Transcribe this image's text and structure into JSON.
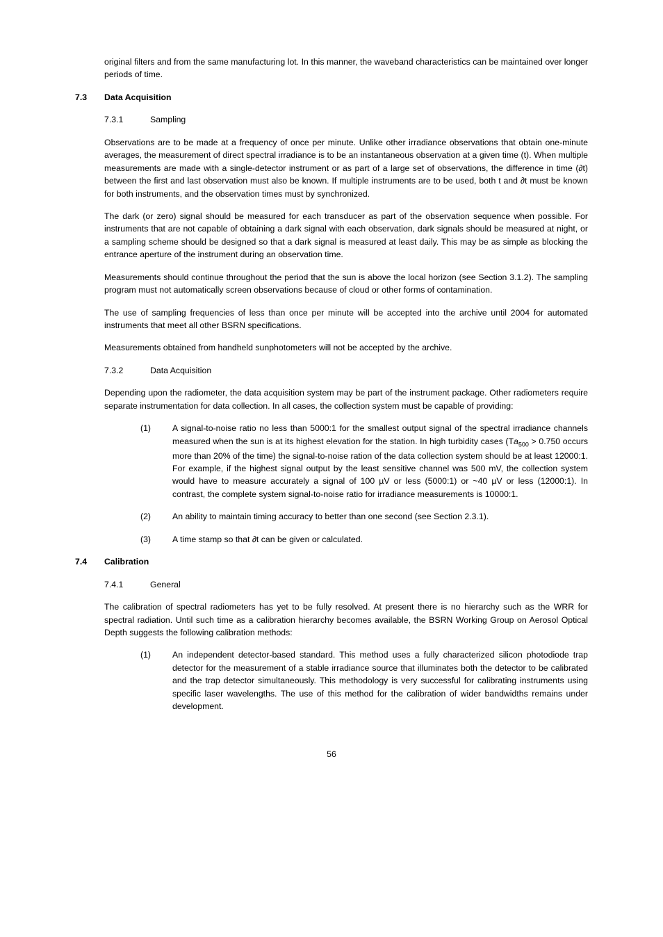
{
  "intro_para": "original filters and from the same manufacturing lot. In this manner, the waveband characteristics can be maintained over longer periods of time.",
  "sec73": {
    "num": "7.3",
    "title": "Data Acquisition",
    "sub1": {
      "num": "7.3.1",
      "title": "Sampling"
    },
    "p1": "Observations are to be made at a frequency of once per minute. Unlike other irradiance observations that obtain one-minute averages,  the measurement of direct spectral irradiance is to be an instantaneous observation at a given time (t). When multiple measurements are made with a single-detector instrument or as part of a large set of observations, the difference in time (∂t) between the first and last observation must also be known. If multiple instruments are to be used, both t and ∂t must be known for both instruments, and the observation times must by synchronized.",
    "p2": "The dark (or zero) signal should be measured for each transducer as part of the observation sequence when possible. For instruments that are not capable of obtaining a dark signal with each observation, dark signals should be measured at night, or a sampling scheme should be designed so that a dark signal is measured at least daily. This may be as simple as blocking the entrance aperture of the instrument during an observation time.",
    "p3": "Measurements should continue throughout the period that the sun is above the local horizon (see Section 3.1.2). The sampling program must not automatically screen observations because of cloud or other forms of contamination.",
    "p4": "The use of sampling frequencies of less than once per minute will be accepted into the archive until 2004 for automated instruments that meet all other BSRN specifications.",
    "p5": "Measurements obtained from handheld sunphotometers will not be accepted by the archive.",
    "sub2": {
      "num": "7.3.2",
      "title": "Data Acquisition"
    },
    "p6": "Depending upon the radiometer, the data acquisition system may be part of the instrument package. Other radiometers require separate instrumentation for data collection. In all cases, the collection system must be capable of providing:",
    "list": {
      "i1_marker": "(1)",
      "i1a": "A signal-to-noise ratio no less than 5000:1 for the smallest output signal of the spectral irradiance channels measured when the sun is at its highest elevation for the station. In high turbidity cases (T",
      "i1_sym_a": "a",
      "i1_sub": "500",
      "i1b": " > 0.750 occurs more than 20% of the time) the signal-to-noise ration of the data collection system should be at least 12000:1. For example, if the highest signal output by the least sensitive channel was 500 mV, the collection system would have to measure accurately a signal of 100 µV or less (5000:1) or  ~40 µV or less (12000:1). In contrast, the complete system signal-to-noise ratio for irradiance measurements is 10000:1.",
      "i2_marker": "(2)",
      "i2": "An ability to maintain timing accuracy to better than one second (see Section 2.3.1).",
      "i3_marker": "(3)",
      "i3": "A time stamp so that ∂t can be given or calculated."
    }
  },
  "sec74": {
    "num": "7.4",
    "title": "Calibration",
    "sub1": {
      "num": "7.4.1",
      "title": "General"
    },
    "p1": "The calibration of spectral radiometers has yet to be fully resolved. At present there is no hierarchy such as the WRR for spectral radiation. Until such time as a calibration hierarchy becomes available, the BSRN Working Group on Aerosol Optical Depth suggests the following  calibration methods:",
    "list": {
      "i1_marker": "(1)",
      "i1": "An independent detector-based standard. This method uses a fully characterized silicon photodiode trap detector for the measurement of a stable irradiance source that illuminates both the detector to be calibrated and the trap detector simultaneously. This methodology is very successful for calibrating instruments using specific laser wavelengths. The use of this method for the calibration of wider bandwidths remains under development."
    }
  },
  "page_number": "56"
}
